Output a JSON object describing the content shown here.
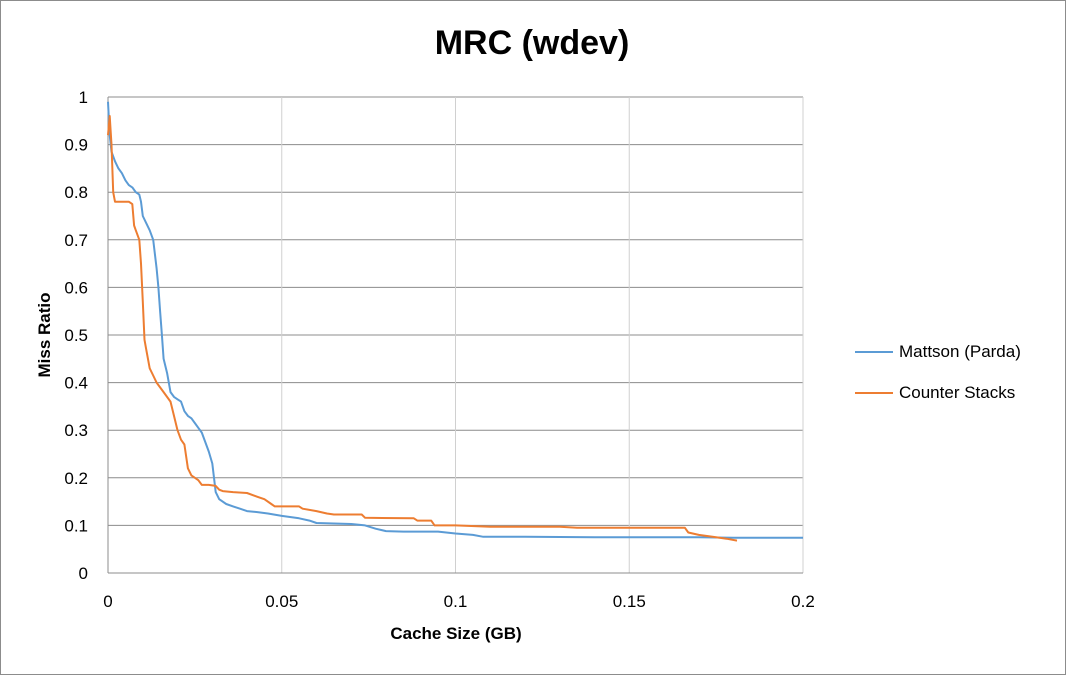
{
  "chart_data": {
    "type": "line",
    "title": "MRC (wdev)",
    "xlabel": "Cache Size (GB)",
    "ylabel": "Miss Ratio",
    "xlim": [
      0,
      0.2
    ],
    "ylim": [
      0,
      1
    ],
    "x_ticks": [
      "0",
      "0.05",
      "0.1",
      "0.15",
      "0.2"
    ],
    "y_ticks": [
      "0",
      "0.1",
      "0.2",
      "0.3",
      "0.4",
      "0.5",
      "0.6",
      "0.7",
      "0.8",
      "0.9",
      "1"
    ],
    "grid": true,
    "legend_position": "right",
    "series": [
      {
        "name": "Mattson (Parda)",
        "color": "#5b9bd5",
        "points": [
          [
            0,
            0.99
          ],
          [
            0.0005,
            0.92
          ],
          [
            0.001,
            0.885
          ],
          [
            0.002,
            0.865
          ],
          [
            0.003,
            0.85
          ],
          [
            0.004,
            0.84
          ],
          [
            0.005,
            0.825
          ],
          [
            0.006,
            0.815
          ],
          [
            0.007,
            0.81
          ],
          [
            0.008,
            0.8
          ],
          [
            0.009,
            0.795
          ],
          [
            0.0095,
            0.78
          ],
          [
            0.01,
            0.75
          ],
          [
            0.011,
            0.735
          ],
          [
            0.012,
            0.72
          ],
          [
            0.013,
            0.7
          ],
          [
            0.0135,
            0.67
          ],
          [
            0.014,
            0.64
          ],
          [
            0.0145,
            0.6
          ],
          [
            0.015,
            0.55
          ],
          [
            0.0155,
            0.5
          ],
          [
            0.016,
            0.45
          ],
          [
            0.017,
            0.42
          ],
          [
            0.018,
            0.38
          ],
          [
            0.019,
            0.37
          ],
          [
            0.02,
            0.365
          ],
          [
            0.021,
            0.36
          ],
          [
            0.022,
            0.34
          ],
          [
            0.023,
            0.33
          ],
          [
            0.024,
            0.325
          ],
          [
            0.025,
            0.315
          ],
          [
            0.026,
            0.305
          ],
          [
            0.027,
            0.295
          ],
          [
            0.028,
            0.275
          ],
          [
            0.029,
            0.255
          ],
          [
            0.03,
            0.23
          ],
          [
            0.0305,
            0.2
          ],
          [
            0.031,
            0.17
          ],
          [
            0.032,
            0.155
          ],
          [
            0.034,
            0.145
          ],
          [
            0.036,
            0.14
          ],
          [
            0.038,
            0.135
          ],
          [
            0.04,
            0.13
          ],
          [
            0.043,
            0.128
          ],
          [
            0.046,
            0.125
          ],
          [
            0.05,
            0.12
          ],
          [
            0.055,
            0.115
          ],
          [
            0.058,
            0.11
          ],
          [
            0.06,
            0.105
          ],
          [
            0.065,
            0.104
          ],
          [
            0.07,
            0.103
          ],
          [
            0.074,
            0.1
          ],
          [
            0.077,
            0.093
          ],
          [
            0.08,
            0.088
          ],
          [
            0.085,
            0.087
          ],
          [
            0.095,
            0.087
          ],
          [
            0.1,
            0.083
          ],
          [
            0.105,
            0.08
          ],
          [
            0.108,
            0.076
          ],
          [
            0.12,
            0.076
          ],
          [
            0.14,
            0.075
          ],
          [
            0.16,
            0.075
          ],
          [
            0.17,
            0.075
          ],
          [
            0.18,
            0.074
          ],
          [
            0.2,
            0.074
          ]
        ]
      },
      {
        "name": "Counter Stacks",
        "color": "#ed7d31",
        "points": [
          [
            0,
            0.92
          ],
          [
            0.0005,
            0.96
          ],
          [
            0.001,
            0.9
          ],
          [
            0.0015,
            0.8
          ],
          [
            0.002,
            0.78
          ],
          [
            0.003,
            0.78
          ],
          [
            0.004,
            0.78
          ],
          [
            0.006,
            0.78
          ],
          [
            0.007,
            0.775
          ],
          [
            0.0075,
            0.73
          ],
          [
            0.008,
            0.72
          ],
          [
            0.009,
            0.7
          ],
          [
            0.0095,
            0.65
          ],
          [
            0.01,
            0.57
          ],
          [
            0.0105,
            0.49
          ],
          [
            0.011,
            0.47
          ],
          [
            0.012,
            0.43
          ],
          [
            0.013,
            0.415
          ],
          [
            0.014,
            0.4
          ],
          [
            0.016,
            0.38
          ],
          [
            0.018,
            0.36
          ],
          [
            0.019,
            0.33
          ],
          [
            0.02,
            0.3
          ],
          [
            0.021,
            0.28
          ],
          [
            0.022,
            0.27
          ],
          [
            0.023,
            0.22
          ],
          [
            0.024,
            0.205
          ],
          [
            0.025,
            0.2
          ],
          [
            0.026,
            0.195
          ],
          [
            0.027,
            0.185
          ],
          [
            0.029,
            0.185
          ],
          [
            0.031,
            0.183
          ],
          [
            0.032,
            0.175
          ],
          [
            0.033,
            0.172
          ],
          [
            0.036,
            0.17
          ],
          [
            0.04,
            0.168
          ],
          [
            0.043,
            0.16
          ],
          [
            0.045,
            0.155
          ],
          [
            0.047,
            0.145
          ],
          [
            0.048,
            0.14
          ],
          [
            0.055,
            0.14
          ],
          [
            0.056,
            0.135
          ],
          [
            0.06,
            0.13
          ],
          [
            0.063,
            0.125
          ],
          [
            0.065,
            0.123
          ],
          [
            0.073,
            0.123
          ],
          [
            0.074,
            0.116
          ],
          [
            0.088,
            0.115
          ],
          [
            0.089,
            0.11
          ],
          [
            0.093,
            0.11
          ],
          [
            0.094,
            0.1
          ],
          [
            0.1,
            0.1
          ],
          [
            0.11,
            0.097
          ],
          [
            0.13,
            0.097
          ],
          [
            0.135,
            0.095
          ],
          [
            0.15,
            0.095
          ],
          [
            0.166,
            0.095
          ],
          [
            0.167,
            0.085
          ],
          [
            0.17,
            0.08
          ],
          [
            0.175,
            0.075
          ],
          [
            0.178,
            0.072
          ],
          [
            0.181,
            0.068
          ]
        ]
      }
    ]
  }
}
